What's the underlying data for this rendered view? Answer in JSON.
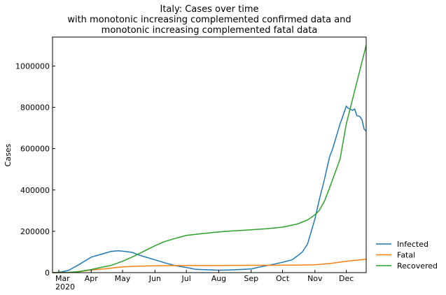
{
  "chart_data": {
    "type": "line",
    "title": [
      "Italy: Cases over time",
      "with monotonic increasing complemented confirmed data and",
      "monotonic increasing complemented fatal data"
    ],
    "xlabel": "",
    "ylabel": "Cases",
    "xlim": [
      "2020-02-24",
      "2020-12-20"
    ],
    "ylim": [
      0,
      1140000
    ],
    "grid": false,
    "legend_position": "outside-bottom-right",
    "x_ticks": [
      {
        "date": "2020-03-01",
        "label": "Mar",
        "sublabel": "2020"
      },
      {
        "date": "2020-04-01",
        "label": "Apr",
        "sublabel": ""
      },
      {
        "date": "2020-05-01",
        "label": "May",
        "sublabel": ""
      },
      {
        "date": "2020-06-01",
        "label": "Jun",
        "sublabel": ""
      },
      {
        "date": "2020-07-01",
        "label": "Jul",
        "sublabel": ""
      },
      {
        "date": "2020-08-01",
        "label": "Aug",
        "sublabel": ""
      },
      {
        "date": "2020-09-01",
        "label": "Sep",
        "sublabel": ""
      },
      {
        "date": "2020-10-01",
        "label": "Oct",
        "sublabel": ""
      },
      {
        "date": "2020-11-01",
        "label": "Nov",
        "sublabel": ""
      },
      {
        "date": "2020-12-01",
        "label": "Dec",
        "sublabel": ""
      }
    ],
    "y_ticks": [
      {
        "value": 0,
        "label": "0"
      },
      {
        "value": 200000,
        "label": "200000"
      },
      {
        "value": 400000,
        "label": "400000"
      },
      {
        "value": 600000,
        "label": "600000"
      },
      {
        "value": 800000,
        "label": "800000"
      },
      {
        "value": 1000000,
        "label": "1000000"
      }
    ],
    "series": [
      {
        "name": "Infected",
        "color": "#1f77b4",
        "points": [
          [
            "2020-02-24",
            0
          ],
          [
            "2020-03-01",
            1500
          ],
          [
            "2020-03-10",
            10000
          ],
          [
            "2020-03-20",
            38000
          ],
          [
            "2020-04-01",
            75000
          ],
          [
            "2020-04-10",
            88000
          ],
          [
            "2020-04-20",
            103000
          ],
          [
            "2020-04-27",
            106000
          ],
          [
            "2020-05-01",
            104000
          ],
          [
            "2020-05-10",
            98000
          ],
          [
            "2020-05-20",
            80000
          ],
          [
            "2020-06-01",
            62000
          ],
          [
            "2020-06-10",
            48000
          ],
          [
            "2020-06-20",
            34000
          ],
          [
            "2020-07-01",
            25000
          ],
          [
            "2020-07-10",
            16000
          ],
          [
            "2020-07-20",
            14000
          ],
          [
            "2020-08-01",
            12000
          ],
          [
            "2020-08-10",
            13000
          ],
          [
            "2020-08-20",
            15000
          ],
          [
            "2020-09-01",
            18000
          ],
          [
            "2020-09-10",
            28000
          ],
          [
            "2020-09-20",
            38000
          ],
          [
            "2020-10-01",
            50000
          ],
          [
            "2020-10-10",
            62000
          ],
          [
            "2020-10-15",
            80000
          ],
          [
            "2020-10-20",
            100000
          ],
          [
            "2020-10-25",
            140000
          ],
          [
            "2020-11-01",
            260000
          ],
          [
            "2020-11-05",
            350000
          ],
          [
            "2020-11-10",
            450000
          ],
          [
            "2020-11-15",
            560000
          ],
          [
            "2020-11-18",
            600000
          ],
          [
            "2020-11-25",
            720000
          ],
          [
            "2020-12-01",
            805000
          ],
          [
            "2020-12-03",
            795000
          ],
          [
            "2020-12-05",
            790000
          ],
          [
            "2020-12-07",
            785000
          ],
          [
            "2020-12-09",
            792000
          ],
          [
            "2020-12-11",
            760000
          ],
          [
            "2020-12-14",
            755000
          ],
          [
            "2020-12-16",
            740000
          ],
          [
            "2020-12-18",
            695000
          ],
          [
            "2020-12-20",
            685000
          ]
        ]
      },
      {
        "name": "Fatal",
        "color": "#ff7f0e",
        "points": [
          [
            "2020-02-24",
            0
          ],
          [
            "2020-03-10",
            1000
          ],
          [
            "2020-03-20",
            4000
          ],
          [
            "2020-04-01",
            13000
          ],
          [
            "2020-04-15",
            19000
          ],
          [
            "2020-05-01",
            28000
          ],
          [
            "2020-05-15",
            31000
          ],
          [
            "2020-06-01",
            33000
          ],
          [
            "2020-07-01",
            34500
          ],
          [
            "2020-08-01",
            35000
          ],
          [
            "2020-09-01",
            35500
          ],
          [
            "2020-10-01",
            36000
          ],
          [
            "2020-10-15",
            36500
          ],
          [
            "2020-11-01",
            38000
          ],
          [
            "2020-11-15",
            44000
          ],
          [
            "2020-12-01",
            55000
          ],
          [
            "2020-12-20",
            65000
          ]
        ]
      },
      {
        "name": "Recovered",
        "color": "#2ca02c",
        "points": [
          [
            "2020-02-24",
            0
          ],
          [
            "2020-03-10",
            1000
          ],
          [
            "2020-03-20",
            5000
          ],
          [
            "2020-04-01",
            15000
          ],
          [
            "2020-04-10",
            25000
          ],
          [
            "2020-04-20",
            35000
          ],
          [
            "2020-05-01",
            55000
          ],
          [
            "2020-05-10",
            75000
          ],
          [
            "2020-05-20",
            100000
          ],
          [
            "2020-06-01",
            130000
          ],
          [
            "2020-06-10",
            150000
          ],
          [
            "2020-06-20",
            165000
          ],
          [
            "2020-07-01",
            180000
          ],
          [
            "2020-07-15",
            188000
          ],
          [
            "2020-08-01",
            197000
          ],
          [
            "2020-08-15",
            202000
          ],
          [
            "2020-09-01",
            207000
          ],
          [
            "2020-09-15",
            212000
          ],
          [
            "2020-10-01",
            220000
          ],
          [
            "2020-10-15",
            235000
          ],
          [
            "2020-10-25",
            255000
          ],
          [
            "2020-11-01",
            280000
          ],
          [
            "2020-11-05",
            300000
          ],
          [
            "2020-11-10",
            345000
          ],
          [
            "2020-11-15",
            410000
          ],
          [
            "2020-11-20",
            480000
          ],
          [
            "2020-11-25",
            550000
          ],
          [
            "2020-12-01",
            720000
          ],
          [
            "2020-12-10",
            900000
          ],
          [
            "2020-12-20",
            1100000
          ]
        ]
      }
    ]
  }
}
